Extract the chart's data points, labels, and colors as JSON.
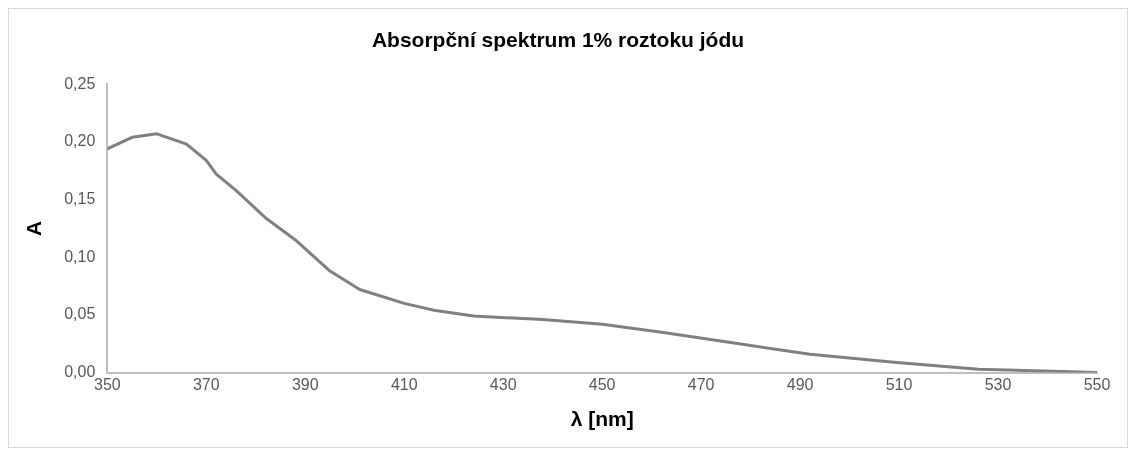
{
  "chart_data": {
    "type": "line",
    "title": "Absorpční spektrum 1% roztoku jódu",
    "xlabel": "λ [nm]",
    "ylabel": "A",
    "x": [
      350,
      355,
      360,
      366,
      370,
      372,
      376,
      382,
      388,
      395,
      401,
      410,
      416,
      424,
      438,
      450,
      462,
      476,
      492,
      509,
      526,
      543,
      550
    ],
    "series": [
      {
        "color": "#808080",
        "values": [
          0.194,
          0.204,
          0.207,
          0.198,
          0.184,
          0.172,
          0.158,
          0.134,
          0.115,
          0.088,
          0.072,
          0.06,
          0.054,
          0.049,
          0.046,
          0.042,
          0.035,
          0.026,
          0.016,
          0.009,
          0.003,
          0.001,
          0
        ]
      }
    ],
    "xlim": [
      350,
      550
    ],
    "xticks": [
      350,
      370,
      390,
      410,
      430,
      450,
      470,
      490,
      510,
      530,
      550
    ],
    "ylim": [
      0,
      0.25
    ],
    "yticks": [
      {
        "value": 0,
        "label": "0,00"
      },
      {
        "value": 0.05,
        "label": "0,05"
      },
      {
        "value": 0.1,
        "label": "0,10"
      },
      {
        "value": 0.15,
        "label": "0,15"
      },
      {
        "value": 0.2,
        "label": "0,20"
      },
      {
        "value": 0.25,
        "label": "0,25"
      }
    ],
    "grid": false,
    "legend": false,
    "marker": "none",
    "line_style": "solid"
  }
}
